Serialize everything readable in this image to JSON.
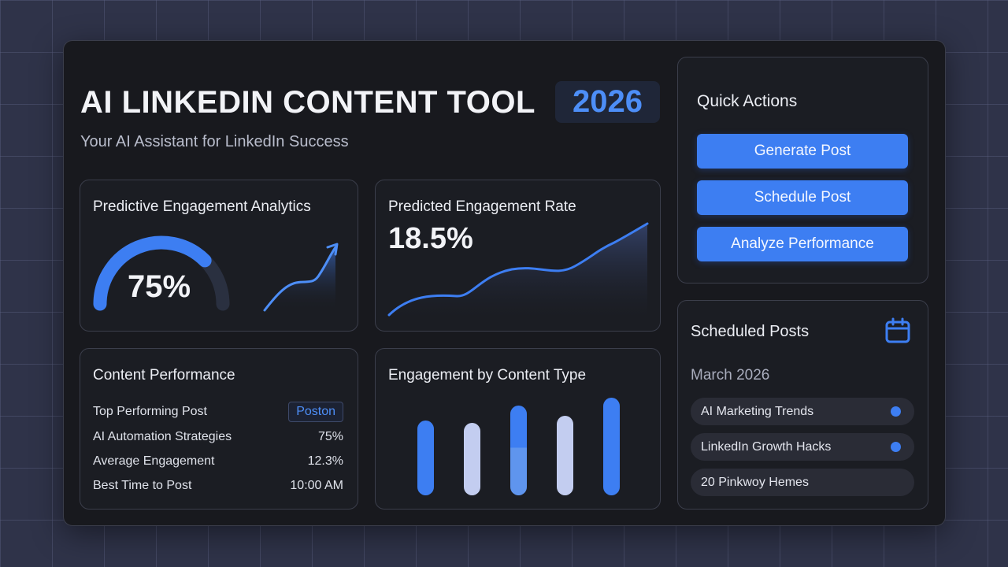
{
  "header": {
    "title": "AI LINKEDIN CONTENT TOOL",
    "year": "2026",
    "subtitle": "Your AI Assistant for LinkedIn Success"
  },
  "engagement_analytics": {
    "title": "Predictive Engagement Analytics",
    "gauge_label": "75%",
    "gauge_fraction": 0.75
  },
  "engagement_rate": {
    "title": "Predicted Engagement Rate",
    "value": "18.5%"
  },
  "content_performance": {
    "title": "Content Performance",
    "rows": [
      {
        "label": "Top Performing Post",
        "value": "Poston"
      },
      {
        "label": "AI Automation Strategies",
        "value": "75%"
      },
      {
        "label": "Average Engagement",
        "value": "12.3%"
      },
      {
        "label": "Best Time to Post",
        "value": "10:00 AM"
      }
    ]
  },
  "content_type": {
    "title": "Engagement by Content Type"
  },
  "quick_actions": {
    "title": "Quick Actions",
    "buttons": [
      "Generate Post",
      "Schedule Post",
      "Analyze Performance"
    ]
  },
  "scheduled_posts": {
    "title": "Scheduled Posts",
    "month": "March 2026",
    "calendar_icon": "calendar-icon",
    "items": [
      {
        "label": "AI Marketing Trends",
        "dot": true
      },
      {
        "label": "LinkedIn Growth Hacks",
        "dot": true
      },
      {
        "label": "20 Pinkwoy Hemes",
        "dot": false
      }
    ]
  },
  "colors": {
    "accent": "#3d7ef2",
    "accent_text": "#4d8ef7",
    "bar_light": "#c3cdf0",
    "bar_mid": "#5f95ee"
  }
}
